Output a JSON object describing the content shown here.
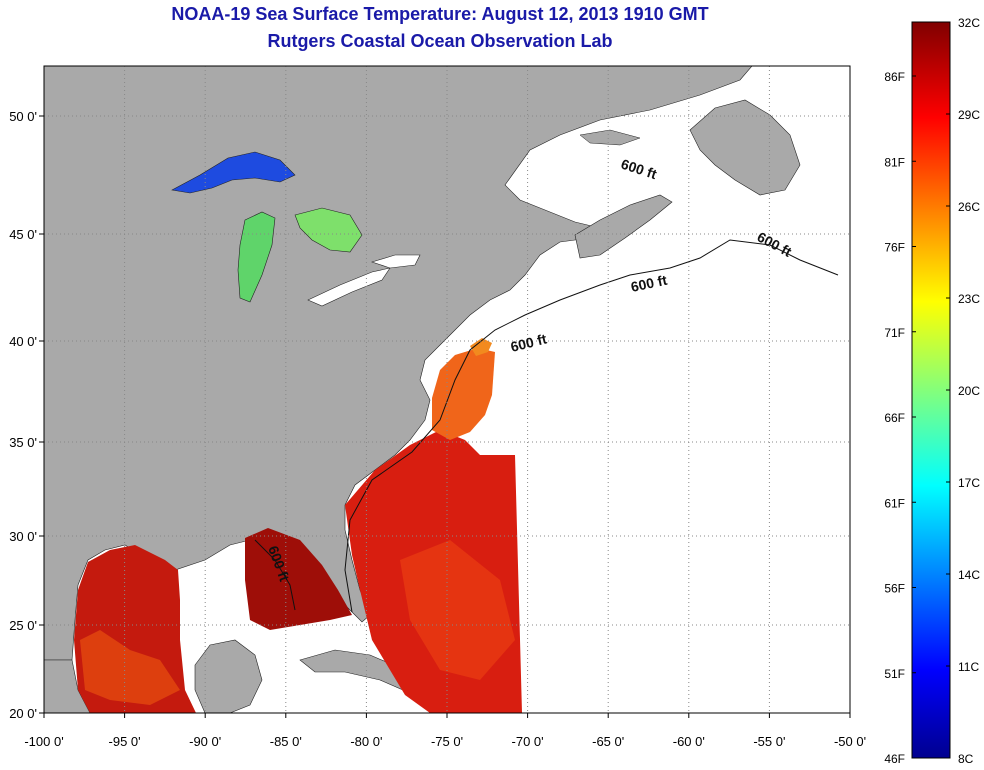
{
  "title": "NOAA-19 Sea Surface Temperature:  August 12, 2013 1910 GMT",
  "subtitle": "Rutgers Coastal Ocean Observation Lab",
  "x_ticks": [
    "-100 0'",
    "-95 0'",
    "-90 0'",
    "-85 0'",
    "-80 0'",
    "-75 0'",
    "-70 0'",
    "-65 0'",
    "-60 0'",
    "-55 0'",
    "-50 0'"
  ],
  "y_ticks": [
    "20 0'",
    "25 0'",
    "30 0'",
    "35 0'",
    "40 0'",
    "45 0'",
    "50 0'"
  ],
  "isobath_label": "600 ft",
  "colorbar": {
    "celsius": [
      "32C",
      "29C",
      "26C",
      "23C",
      "20C",
      "17C",
      "14C",
      "11C",
      "8C"
    ],
    "fahrenheit": [
      "86F",
      "81F",
      "76F",
      "71F",
      "66F",
      "61F",
      "56F",
      "51F",
      "46F"
    ]
  },
  "colors": {
    "land": "#a9a9a9",
    "no_data": "#ffffff",
    "title_text": "#1a1aa8",
    "grid": "#888888"
  }
}
